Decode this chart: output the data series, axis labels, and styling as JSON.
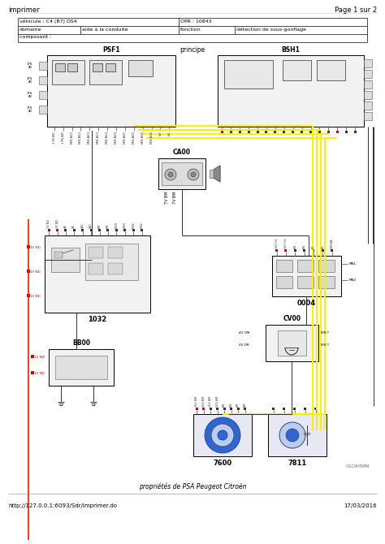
{
  "page_header_left": "imprimer",
  "page_header_right": "Page 1 sur 2",
  "table_row1_left": "véhicule : C4 (B7) DS4",
  "table_row1_right": "OPR : 10843",
  "table_row2_c1": "domaine",
  "table_row2_c2": "aide à la conduite",
  "table_row2_c3": "fonction",
  "table_row2_c4": "détection de sous-gonflage",
  "table_row3": "composant :",
  "principe_label": "principe",
  "psf1_label": "PSF1",
  "bsh1_label": "BSH1",
  "ca00_label": "CA00",
  "label_1032": "1032",
  "label_bb00": "BB00",
  "label_0004": "0004",
  "label_cv00": "CV00",
  "label_7600": "7600",
  "label_7811": "7811",
  "footer_left": "http://127.0.0.1:6093/Sdr/imprimer.do",
  "footer_right": "17/03/2016",
  "footer_center": "propriétés de PSA Peugeot Citroën",
  "ref_code": "OGC0HSMM",
  "bg_color": "#ffffff",
  "border_color": "#000000",
  "wire_yellow": "#f5f010",
  "wire_red": "#dd2200",
  "wire_dark": "#303030",
  "box_fill": "#f2f2f2",
  "inner_fill": "#e0e0e0",
  "text_color": "#000000",
  "fig_width": 4.74,
  "fig_height": 6.7,
  "dpi": 100
}
